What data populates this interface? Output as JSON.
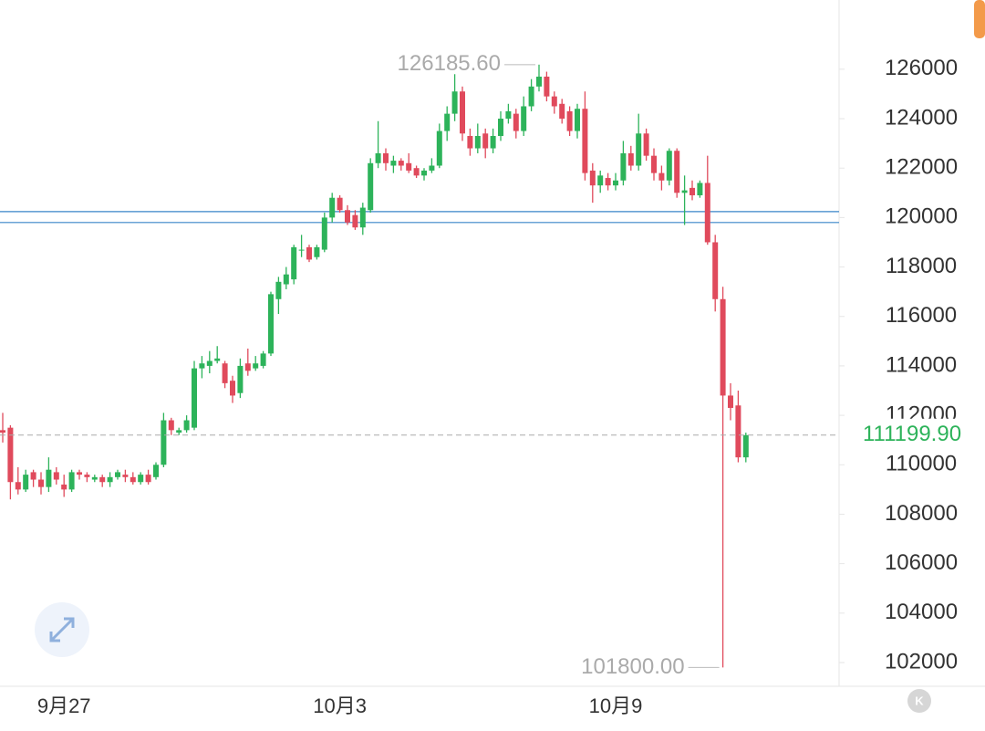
{
  "chart_data": {
    "type": "candlestick",
    "categories": [
      null,
      null,
      null,
      null,
      null,
      null,
      null,
      null,
      "9月27",
      null,
      null,
      null,
      null,
      null,
      null,
      null,
      null,
      null,
      null,
      null,
      null,
      null,
      null,
      null,
      null,
      null,
      null,
      null,
      null,
      null,
      null,
      null,
      null,
      null,
      null,
      null,
      null,
      null,
      null,
      null,
      null,
      null,
      null,
      null,
      "10月3",
      null,
      null,
      null,
      null,
      null,
      null,
      null,
      null,
      null,
      null,
      null,
      null,
      null,
      null,
      null,
      null,
      null,
      null,
      null,
      null,
      null,
      null,
      null,
      null,
      null,
      null,
      null,
      null,
      null,
      null,
      null,
      null,
      null,
      null,
      null,
      "10月9",
      null,
      null,
      null,
      null,
      null,
      null,
      null,
      null,
      null,
      null,
      null,
      null,
      null,
      null,
      null,
      null,
      null
    ],
    "ohlc": [
      [
        111400,
        112100,
        110900,
        111300
      ],
      [
        111500,
        111600,
        108600,
        109300
      ],
      [
        109300,
        109900,
        108800,
        109000
      ],
      [
        109000,
        109800,
        108900,
        109600
      ],
      [
        109700,
        109800,
        109100,
        109400
      ],
      [
        109400,
        109700,
        108800,
        109100
      ],
      [
        109100,
        110300,
        108900,
        109800
      ],
      [
        109700,
        109900,
        109200,
        109400
      ],
      [
        109200,
        109600,
        108700,
        109000
      ],
      [
        109000,
        109800,
        108900,
        109700
      ],
      [
        109700,
        109800,
        109400,
        109600
      ],
      [
        109600,
        109700,
        109300,
        109500
      ],
      [
        109400,
        109600,
        109300,
        109500
      ],
      [
        109500,
        109600,
        109100,
        109300
      ],
      [
        109300,
        109700,
        109100,
        109500
      ],
      [
        109500,
        109800,
        109400,
        109700
      ],
      [
        109600,
        109800,
        109300,
        109500
      ],
      [
        109500,
        109700,
        109200,
        109300
      ],
      [
        109300,
        109700,
        109200,
        109600
      ],
      [
        109600,
        109800,
        109200,
        109300
      ],
      [
        109500,
        110100,
        109400,
        110000
      ],
      [
        110000,
        112100,
        109900,
        111800
      ],
      [
        111800,
        111900,
        111200,
        111400
      ],
      [
        111300,
        111500,
        111200,
        111400
      ],
      [
        111400,
        112000,
        111300,
        111800
      ],
      [
        111500,
        114200,
        111400,
        113900
      ],
      [
        113900,
        114400,
        113500,
        114100
      ],
      [
        114000,
        114600,
        113700,
        114200
      ],
      [
        114200,
        114800,
        114100,
        114300
      ],
      [
        114100,
        114200,
        113100,
        113300
      ],
      [
        113400,
        113600,
        112500,
        112800
      ],
      [
        112900,
        114300,
        112700,
        114000
      ],
      [
        114100,
        114700,
        113600,
        113800
      ],
      [
        113900,
        114400,
        113800,
        114100
      ],
      [
        114000,
        114600,
        113900,
        114500
      ],
      [
        114500,
        117000,
        114400,
        116900
      ],
      [
        116700,
        117600,
        116100,
        117400
      ],
      [
        117300,
        118000,
        117100,
        117700
      ],
      [
        117500,
        118900,
        117300,
        118800
      ],
      [
        118700,
        119300,
        118400,
        118700
      ],
      [
        118800,
        118900,
        118200,
        118300
      ],
      [
        118400,
        118900,
        118300,
        118800
      ],
      [
        118700,
        120200,
        118600,
        120000
      ],
      [
        120000,
        121000,
        119800,
        120800
      ],
      [
        120800,
        120900,
        120200,
        120300
      ],
      [
        120300,
        120500,
        119700,
        119800
      ],
      [
        120100,
        120300,
        119500,
        119600
      ],
      [
        119600,
        120600,
        119300,
        120400
      ],
      [
        120300,
        122400,
        120200,
        122200
      ],
      [
        122200,
        123900,
        122000,
        122600
      ],
      [
        122600,
        122800,
        121900,
        122200
      ],
      [
        122100,
        122500,
        121800,
        122300
      ],
      [
        122300,
        122400,
        121900,
        122100
      ],
      [
        122200,
        122600,
        121800,
        121900
      ],
      [
        122000,
        122100,
        121600,
        121700
      ],
      [
        121700,
        122000,
        121500,
        121900
      ],
      [
        121900,
        122400,
        121800,
        122100
      ],
      [
        122100,
        123800,
        122000,
        123500
      ],
      [
        123500,
        124500,
        123100,
        124200
      ],
      [
        124200,
        125800,
        123900,
        125100
      ],
      [
        125100,
        125300,
        123100,
        123400
      ],
      [
        123300,
        123600,
        122500,
        122800
      ],
      [
        122800,
        123800,
        122600,
        123300
      ],
      [
        123400,
        123600,
        122400,
        122800
      ],
      [
        122800,
        123600,
        122600,
        123300
      ],
      [
        123300,
        124300,
        123100,
        124000
      ],
      [
        124000,
        124600,
        123800,
        124300
      ],
      [
        124200,
        124400,
        123200,
        123500
      ],
      [
        123500,
        124900,
        123300,
        124500
      ],
      [
        124500,
        125600,
        124300,
        125300
      ],
      [
        125300,
        126185.6,
        125100,
        125700
      ],
      [
        125700,
        125900,
        124700,
        124900
      ],
      [
        124900,
        125100,
        124200,
        124500
      ],
      [
        124600,
        124800,
        123800,
        124000
      ],
      [
        124300,
        124500,
        123300,
        123500
      ],
      [
        123500,
        124600,
        123200,
        124400
      ],
      [
        124400,
        125100,
        121500,
        121800
      ],
      [
        121900,
        122200,
        120600,
        121300
      ],
      [
        121300,
        121900,
        121000,
        121700
      ],
      [
        121600,
        121800,
        121100,
        121300
      ],
      [
        121300,
        121800,
        121100,
        121500
      ],
      [
        121500,
        123100,
        121300,
        122600
      ],
      [
        122600,
        122900,
        121900,
        122100
      ],
      [
        122100,
        124200,
        121900,
        123400
      ],
      [
        123400,
        123600,
        122300,
        122500
      ],
      [
        122500,
        122800,
        121500,
        121800
      ],
      [
        121800,
        122100,
        121100,
        121500
      ],
      [
        121500,
        122800,
        121300,
        122700
      ],
      [
        122700,
        122800,
        120800,
        121000
      ],
      [
        121000,
        121700,
        119700,
        121100
      ],
      [
        121200,
        121500,
        120700,
        120900
      ],
      [
        120900,
        121500,
        120800,
        121400
      ],
      [
        121400,
        122500,
        118900,
        119000
      ],
      [
        119000,
        119300,
        116200,
        116700
      ],
      [
        116700,
        117200,
        101800,
        112800
      ],
      [
        112800,
        113300,
        111800,
        112300
      ],
      [
        112400,
        113000,
        110100,
        110300
      ],
      [
        110300,
        111300,
        110100,
        111199.9
      ]
    ],
    "up_color": "#2db35a",
    "down_color": "#e04a5c",
    "ylim": [
      101040,
      128800
    ],
    "yticks": [
      102000,
      104000,
      106000,
      108000,
      110000,
      112000,
      114000,
      116000,
      118000,
      120000,
      122000,
      124000,
      126000
    ],
    "hlines": [
      120240,
      119800
    ],
    "hline_color": "#3a86c8",
    "price_line": {
      "value": 111199.9,
      "label": "111199.90"
    },
    "annotations": [
      {
        "value": 126185.6,
        "label": "126185.60"
      },
      {
        "value": 101800,
        "label": "101800.00"
      }
    ]
  }
}
